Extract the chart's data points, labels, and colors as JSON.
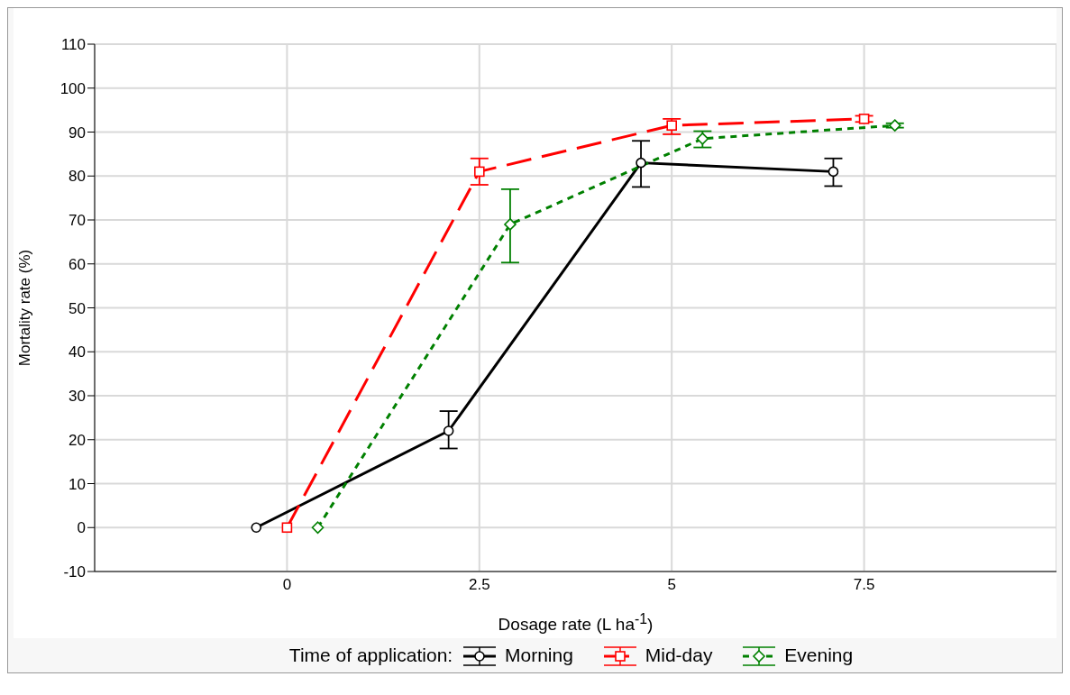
{
  "chart_data": {
    "type": "line",
    "xlabel": "Dosage rate (L ha$^{-1}$)",
    "ylabel": "Mortality rate (%)",
    "legend_title": "Time of application:",
    "xlim": [
      -2.5,
      10
    ],
    "xticks": [
      0,
      2.5,
      5,
      7.5
    ],
    "ylim": [
      -10,
      110
    ],
    "yticks": [
      -10,
      0,
      10,
      20,
      30,
      40,
      50,
      60,
      70,
      80,
      90,
      100,
      110
    ],
    "grid": true,
    "legend": "bottom",
    "series": [
      {
        "name": "Morning",
        "color": "#000000",
        "marker": "circle",
        "line_style": "solid",
        "x": [
          -0.4,
          2.1,
          4.6,
          7.1
        ],
        "values": [
          0,
          22,
          83,
          81
        ],
        "errors": [
          null,
          [
            18,
            26.5
          ],
          [
            77.5,
            88
          ],
          [
            77.7,
            84
          ]
        ]
      },
      {
        "name": "Mid-day",
        "color": "#ff0000",
        "marker": "square",
        "line_style": "dashed",
        "x": [
          0,
          2.5,
          5,
          7.5
        ],
        "values": [
          0,
          81,
          91.5,
          93
        ],
        "errors": [
          null,
          [
            78,
            84
          ],
          [
            89.5,
            93
          ],
          [
            92.3,
            93.7
          ]
        ]
      },
      {
        "name": "Evening",
        "color": "#008000",
        "marker": "diamond",
        "line_style": "dotted",
        "x": [
          0.4,
          2.9,
          5.4,
          7.9
        ],
        "values": [
          0,
          69,
          88.5,
          91.5
        ],
        "errors": [
          null,
          [
            60.3,
            77
          ],
          [
            86.5,
            90.2
          ],
          [
            91,
            92
          ]
        ]
      }
    ]
  }
}
